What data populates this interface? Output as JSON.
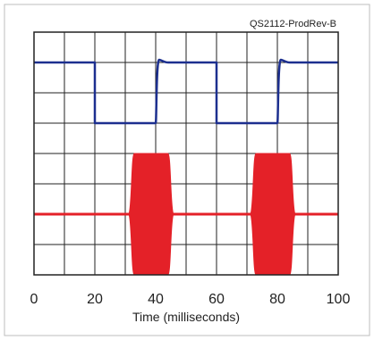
{
  "chart_data": {
    "type": "line",
    "title": "",
    "corner_label": "QS2112-ProdRev-B",
    "xlabel": "Time (milliseconds)",
    "ylabel": "",
    "xlim": [
      0,
      100
    ],
    "x_ticks": [
      "0",
      "20",
      "40",
      "60",
      "80",
      "100"
    ],
    "grid": true,
    "grid_divisions": {
      "x": 10,
      "y": 8
    },
    "legend": "none",
    "series": [
      {
        "color": "#1c2f8f",
        "kind": "square-wave",
        "y_high_div": 1,
        "y_low_div": 3,
        "transitions": [
          {
            "t": 20,
            "to": "low"
          },
          {
            "t": 40,
            "to": "high"
          },
          {
            "t": 60,
            "to": "low"
          },
          {
            "t": 80,
            "to": "high"
          }
        ]
      },
      {
        "color": "#e42128",
        "kind": "rf-bursts",
        "y_center_div": 6,
        "burst_amplitude_div": 2,
        "bursts": [
          {
            "start": 31,
            "end": 46
          },
          {
            "start": 71,
            "end": 86
          }
        ]
      }
    ]
  }
}
